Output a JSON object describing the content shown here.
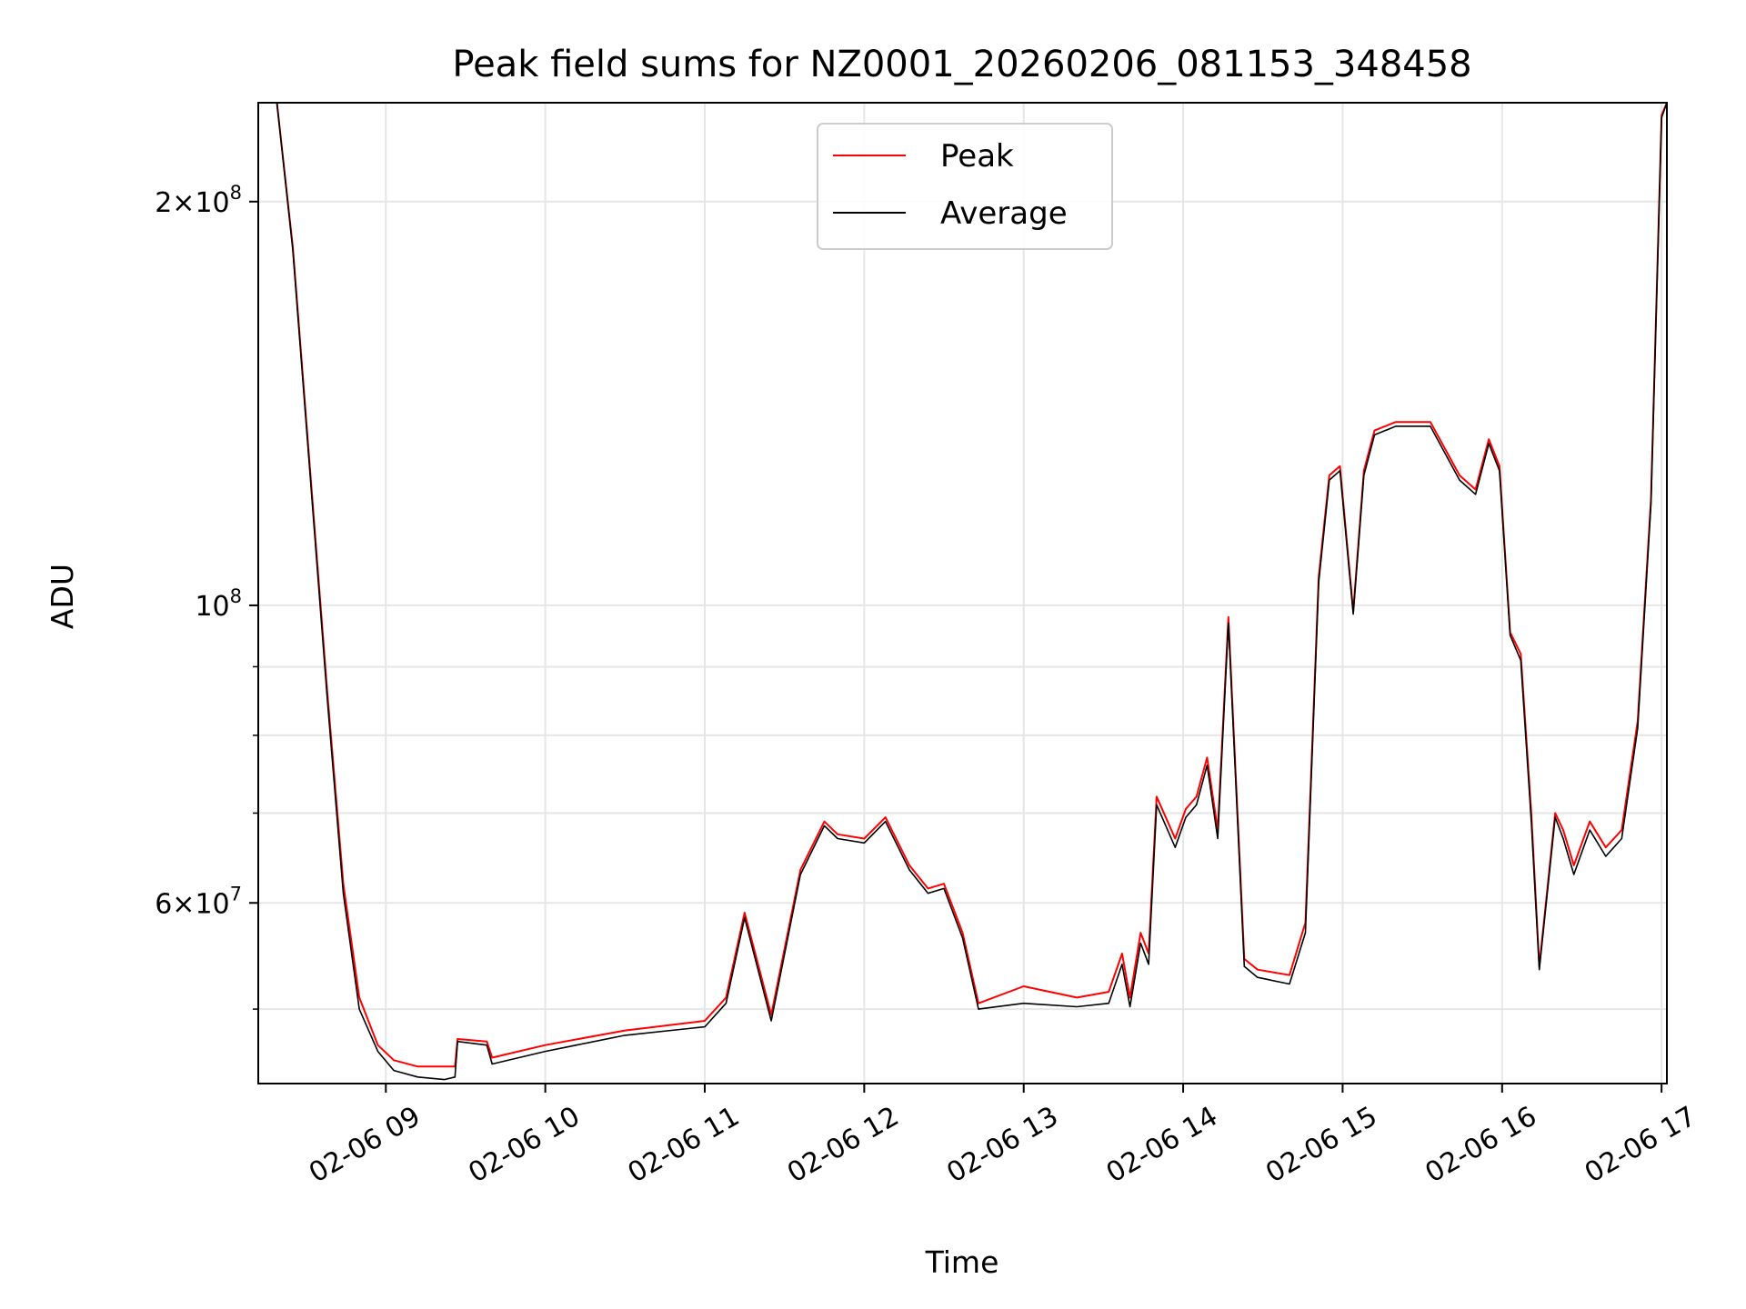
{
  "chart_data": {
    "type": "line",
    "title": "Peak field sums for NZ0001_20260206_081153_348458",
    "xlabel": "Time",
    "ylabel": "ADU",
    "yscale": "log",
    "grid": true,
    "legend_position": "upper-center",
    "xlim": [
      "2026-02-06 08:12",
      "2026-02-06 17:02"
    ],
    "ylim": [
      44000000,
      237000000
    ],
    "x_ticks": [
      {
        "value": "2026-02-06 09:00",
        "label": "02-06 09"
      },
      {
        "value": "2026-02-06 10:00",
        "label": "02-06 10"
      },
      {
        "value": "2026-02-06 11:00",
        "label": "02-06 11"
      },
      {
        "value": "2026-02-06 12:00",
        "label": "02-06 12"
      },
      {
        "value": "2026-02-06 13:00",
        "label": "02-06 13"
      },
      {
        "value": "2026-02-06 14:00",
        "label": "02-06 14"
      },
      {
        "value": "2026-02-06 15:00",
        "label": "02-06 15"
      },
      {
        "value": "2026-02-06 16:00",
        "label": "02-06 16"
      },
      {
        "value": "2026-02-06 17:00",
        "label": "02-06 17"
      }
    ],
    "y_major_ticks": [
      {
        "value": 60000000,
        "mantissa": "6×10",
        "exp": "7"
      },
      {
        "value": 100000000,
        "mantissa": "10",
        "exp": "8"
      },
      {
        "value": 200000000,
        "mantissa": "2×10",
        "exp": "8"
      }
    ],
    "y_minor_ticks": [
      50000000,
      70000000,
      80000000,
      90000000
    ],
    "series": [
      {
        "name": "Peak",
        "color": "#ff0000",
        "x": [
          "2026-02-06 08:12",
          "2026-02-06 08:19",
          "2026-02-06 08:25",
          "2026-02-06 08:31",
          "2026-02-06 08:38",
          "2026-02-06 08:44",
          "2026-02-06 08:50",
          "2026-02-06 08:57",
          "2026-02-06 09:03",
          "2026-02-06 09:12",
          "2026-02-06 09:22",
          "2026-02-06 09:26",
          "2026-02-06 09:27",
          "2026-02-06 09:38",
          "2026-02-06 09:40",
          "2026-02-06 10:00",
          "2026-02-06 10:30",
          "2026-02-06 11:00",
          "2026-02-06 11:08",
          "2026-02-06 11:15",
          "2026-02-06 11:25",
          "2026-02-06 11:36",
          "2026-02-06 11:45",
          "2026-02-06 11:50",
          "2026-02-06 12:00",
          "2026-02-06 12:08",
          "2026-02-06 12:17",
          "2026-02-06 12:24",
          "2026-02-06 12:30",
          "2026-02-06 12:37",
          "2026-02-06 12:43",
          "2026-02-06 13:00",
          "2026-02-06 13:20",
          "2026-02-06 13:32",
          "2026-02-06 13:37",
          "2026-02-06 13:40",
          "2026-02-06 13:44",
          "2026-02-06 13:47",
          "2026-02-06 13:50",
          "2026-02-06 13:57",
          "2026-02-06 14:01",
          "2026-02-06 14:05",
          "2026-02-06 14:09",
          "2026-02-06 14:13",
          "2026-02-06 14:17",
          "2026-02-06 14:23",
          "2026-02-06 14:28",
          "2026-02-06 14:40",
          "2026-02-06 14:46",
          "2026-02-06 14:51",
          "2026-02-06 14:55",
          "2026-02-06 14:59",
          "2026-02-06 15:04",
          "2026-02-06 15:08",
          "2026-02-06 15:12",
          "2026-02-06 15:20",
          "2026-02-06 15:33",
          "2026-02-06 15:44",
          "2026-02-06 15:50",
          "2026-02-06 15:55",
          "2026-02-06 15:59",
          "2026-02-06 16:03",
          "2026-02-06 16:07",
          "2026-02-06 16:11",
          "2026-02-06 16:14",
          "2026-02-06 16:20",
          "2026-02-06 16:23",
          "2026-02-06 16:27",
          "2026-02-06 16:33",
          "2026-02-06 16:39",
          "2026-02-06 16:45",
          "2026-02-06 16:51",
          "2026-02-06 16:56",
          "2026-02-06 17:00",
          "2026-02-06 17:02"
        ],
        "y": [
          237000000,
          237000000,
          185000000,
          130000000,
          86000000,
          62000000,
          51000000,
          47000000,
          45800000,
          45300000,
          45300000,
          45300000,
          47500000,
          47300000,
          46000000,
          47000000,
          48200000,
          49000000,
          51000000,
          59000000,
          49500000,
          63500000,
          69000000,
          67500000,
          67000000,
          69500000,
          64000000,
          61500000,
          62000000,
          57000000,
          50500000,
          52000000,
          51000000,
          51500000,
          55000000,
          51000000,
          57000000,
          55000000,
          72000000,
          67000000,
          70500000,
          72000000,
          77000000,
          68000000,
          98000000,
          54500000,
          53500000,
          53000000,
          58000000,
          105000000,
          125000000,
          127000000,
          99000000,
          126000000,
          135000000,
          137000000,
          137000000,
          125000000,
          122000000,
          133000000,
          127000000,
          95500000,
          92000000,
          70000000,
          53800000,
          70000000,
          68000000,
          64000000,
          69000000,
          66000000,
          68000000,
          82000000,
          120000000,
          232000000,
          237000000
        ]
      },
      {
        "name": "Average",
        "color": "#000000",
        "x": [
          "2026-02-06 08:12",
          "2026-02-06 08:19",
          "2026-02-06 08:25",
          "2026-02-06 08:31",
          "2026-02-06 08:38",
          "2026-02-06 08:44",
          "2026-02-06 08:50",
          "2026-02-06 08:57",
          "2026-02-06 09:03",
          "2026-02-06 09:12",
          "2026-02-06 09:22",
          "2026-02-06 09:26",
          "2026-02-06 09:27",
          "2026-02-06 09:38",
          "2026-02-06 09:40",
          "2026-02-06 10:00",
          "2026-02-06 10:30",
          "2026-02-06 11:00",
          "2026-02-06 11:08",
          "2026-02-06 11:15",
          "2026-02-06 11:25",
          "2026-02-06 11:36",
          "2026-02-06 11:45",
          "2026-02-06 11:50",
          "2026-02-06 12:00",
          "2026-02-06 12:08",
          "2026-02-06 12:17",
          "2026-02-06 12:24",
          "2026-02-06 12:30",
          "2026-02-06 12:37",
          "2026-02-06 12:43",
          "2026-02-06 13:00",
          "2026-02-06 13:20",
          "2026-02-06 13:32",
          "2026-02-06 13:37",
          "2026-02-06 13:40",
          "2026-02-06 13:44",
          "2026-02-06 13:47",
          "2026-02-06 13:50",
          "2026-02-06 13:57",
          "2026-02-06 14:01",
          "2026-02-06 14:05",
          "2026-02-06 14:09",
          "2026-02-06 14:13",
          "2026-02-06 14:17",
          "2026-02-06 14:23",
          "2026-02-06 14:28",
          "2026-02-06 14:40",
          "2026-02-06 14:46",
          "2026-02-06 14:51",
          "2026-02-06 14:55",
          "2026-02-06 14:59",
          "2026-02-06 15:04",
          "2026-02-06 15:08",
          "2026-02-06 15:12",
          "2026-02-06 15:20",
          "2026-02-06 15:33",
          "2026-02-06 15:44",
          "2026-02-06 15:50",
          "2026-02-06 15:55",
          "2026-02-06 15:59",
          "2026-02-06 16:03",
          "2026-02-06 16:07",
          "2026-02-06 16:11",
          "2026-02-06 16:14",
          "2026-02-06 16:20",
          "2026-02-06 16:23",
          "2026-02-06 16:27",
          "2026-02-06 16:33",
          "2026-02-06 16:39",
          "2026-02-06 16:45",
          "2026-02-06 16:51",
          "2026-02-06 16:56",
          "2026-02-06 17:00",
          "2026-02-06 17:02"
        ],
        "y": [
          237000000,
          237000000,
          184000000,
          129000000,
          85000000,
          61000000,
          50000000,
          46500000,
          45000000,
          44500000,
          44300000,
          44500000,
          47300000,
          47000000,
          45500000,
          46500000,
          47800000,
          48500000,
          50500000,
          58500000,
          49000000,
          63000000,
          68500000,
          67000000,
          66500000,
          69000000,
          63500000,
          61000000,
          61500000,
          56500000,
          50000000,
          50500000,
          50200000,
          50500000,
          54000000,
          50200000,
          56000000,
          54000000,
          71000000,
          66000000,
          69500000,
          71000000,
          76000000,
          67000000,
          97000000,
          53800000,
          52800000,
          52200000,
          57000000,
          104000000,
          124000000,
          126000000,
          98500000,
          125000000,
          134000000,
          136000000,
          136000000,
          124000000,
          121000000,
          132000000,
          126000000,
          95000000,
          91000000,
          69000000,
          53500000,
          69500000,
          67000000,
          63000000,
          68000000,
          65000000,
          67000000,
          81000000,
          119000000,
          231000000,
          237000000
        ]
      }
    ]
  }
}
